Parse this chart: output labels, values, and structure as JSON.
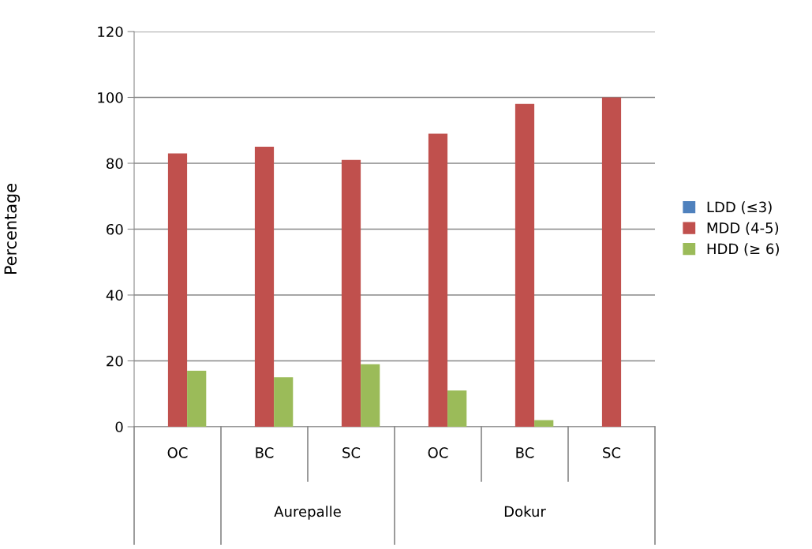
{
  "chart_data": {
    "type": "bar",
    "ylabel": "Percentage",
    "categories": [
      "OC",
      "BC",
      "SC",
      "OC",
      "BC",
      "SC"
    ],
    "series": [
      {
        "name": "LDD (≤3)",
        "color": "#4f81bd",
        "values": [
          0,
          0,
          0,
          0,
          0,
          0
        ]
      },
      {
        "name": "MDD (4-5)",
        "color": "#c0504d",
        "values": [
          83,
          85,
          81,
          89,
          98,
          100
        ]
      },
      {
        "name": "HDD (≥ 6)",
        "color": "#9bbb59",
        "values": [
          17,
          15,
          19,
          11,
          2,
          0
        ]
      }
    ],
    "ylim": [
      0,
      120
    ],
    "yticks": [
      0,
      20,
      40,
      60,
      80,
      100,
      120
    ],
    "grid": "y",
    "legend": "right",
    "annotations": [
      "Aurepalle",
      "Dokur"
    ]
  }
}
